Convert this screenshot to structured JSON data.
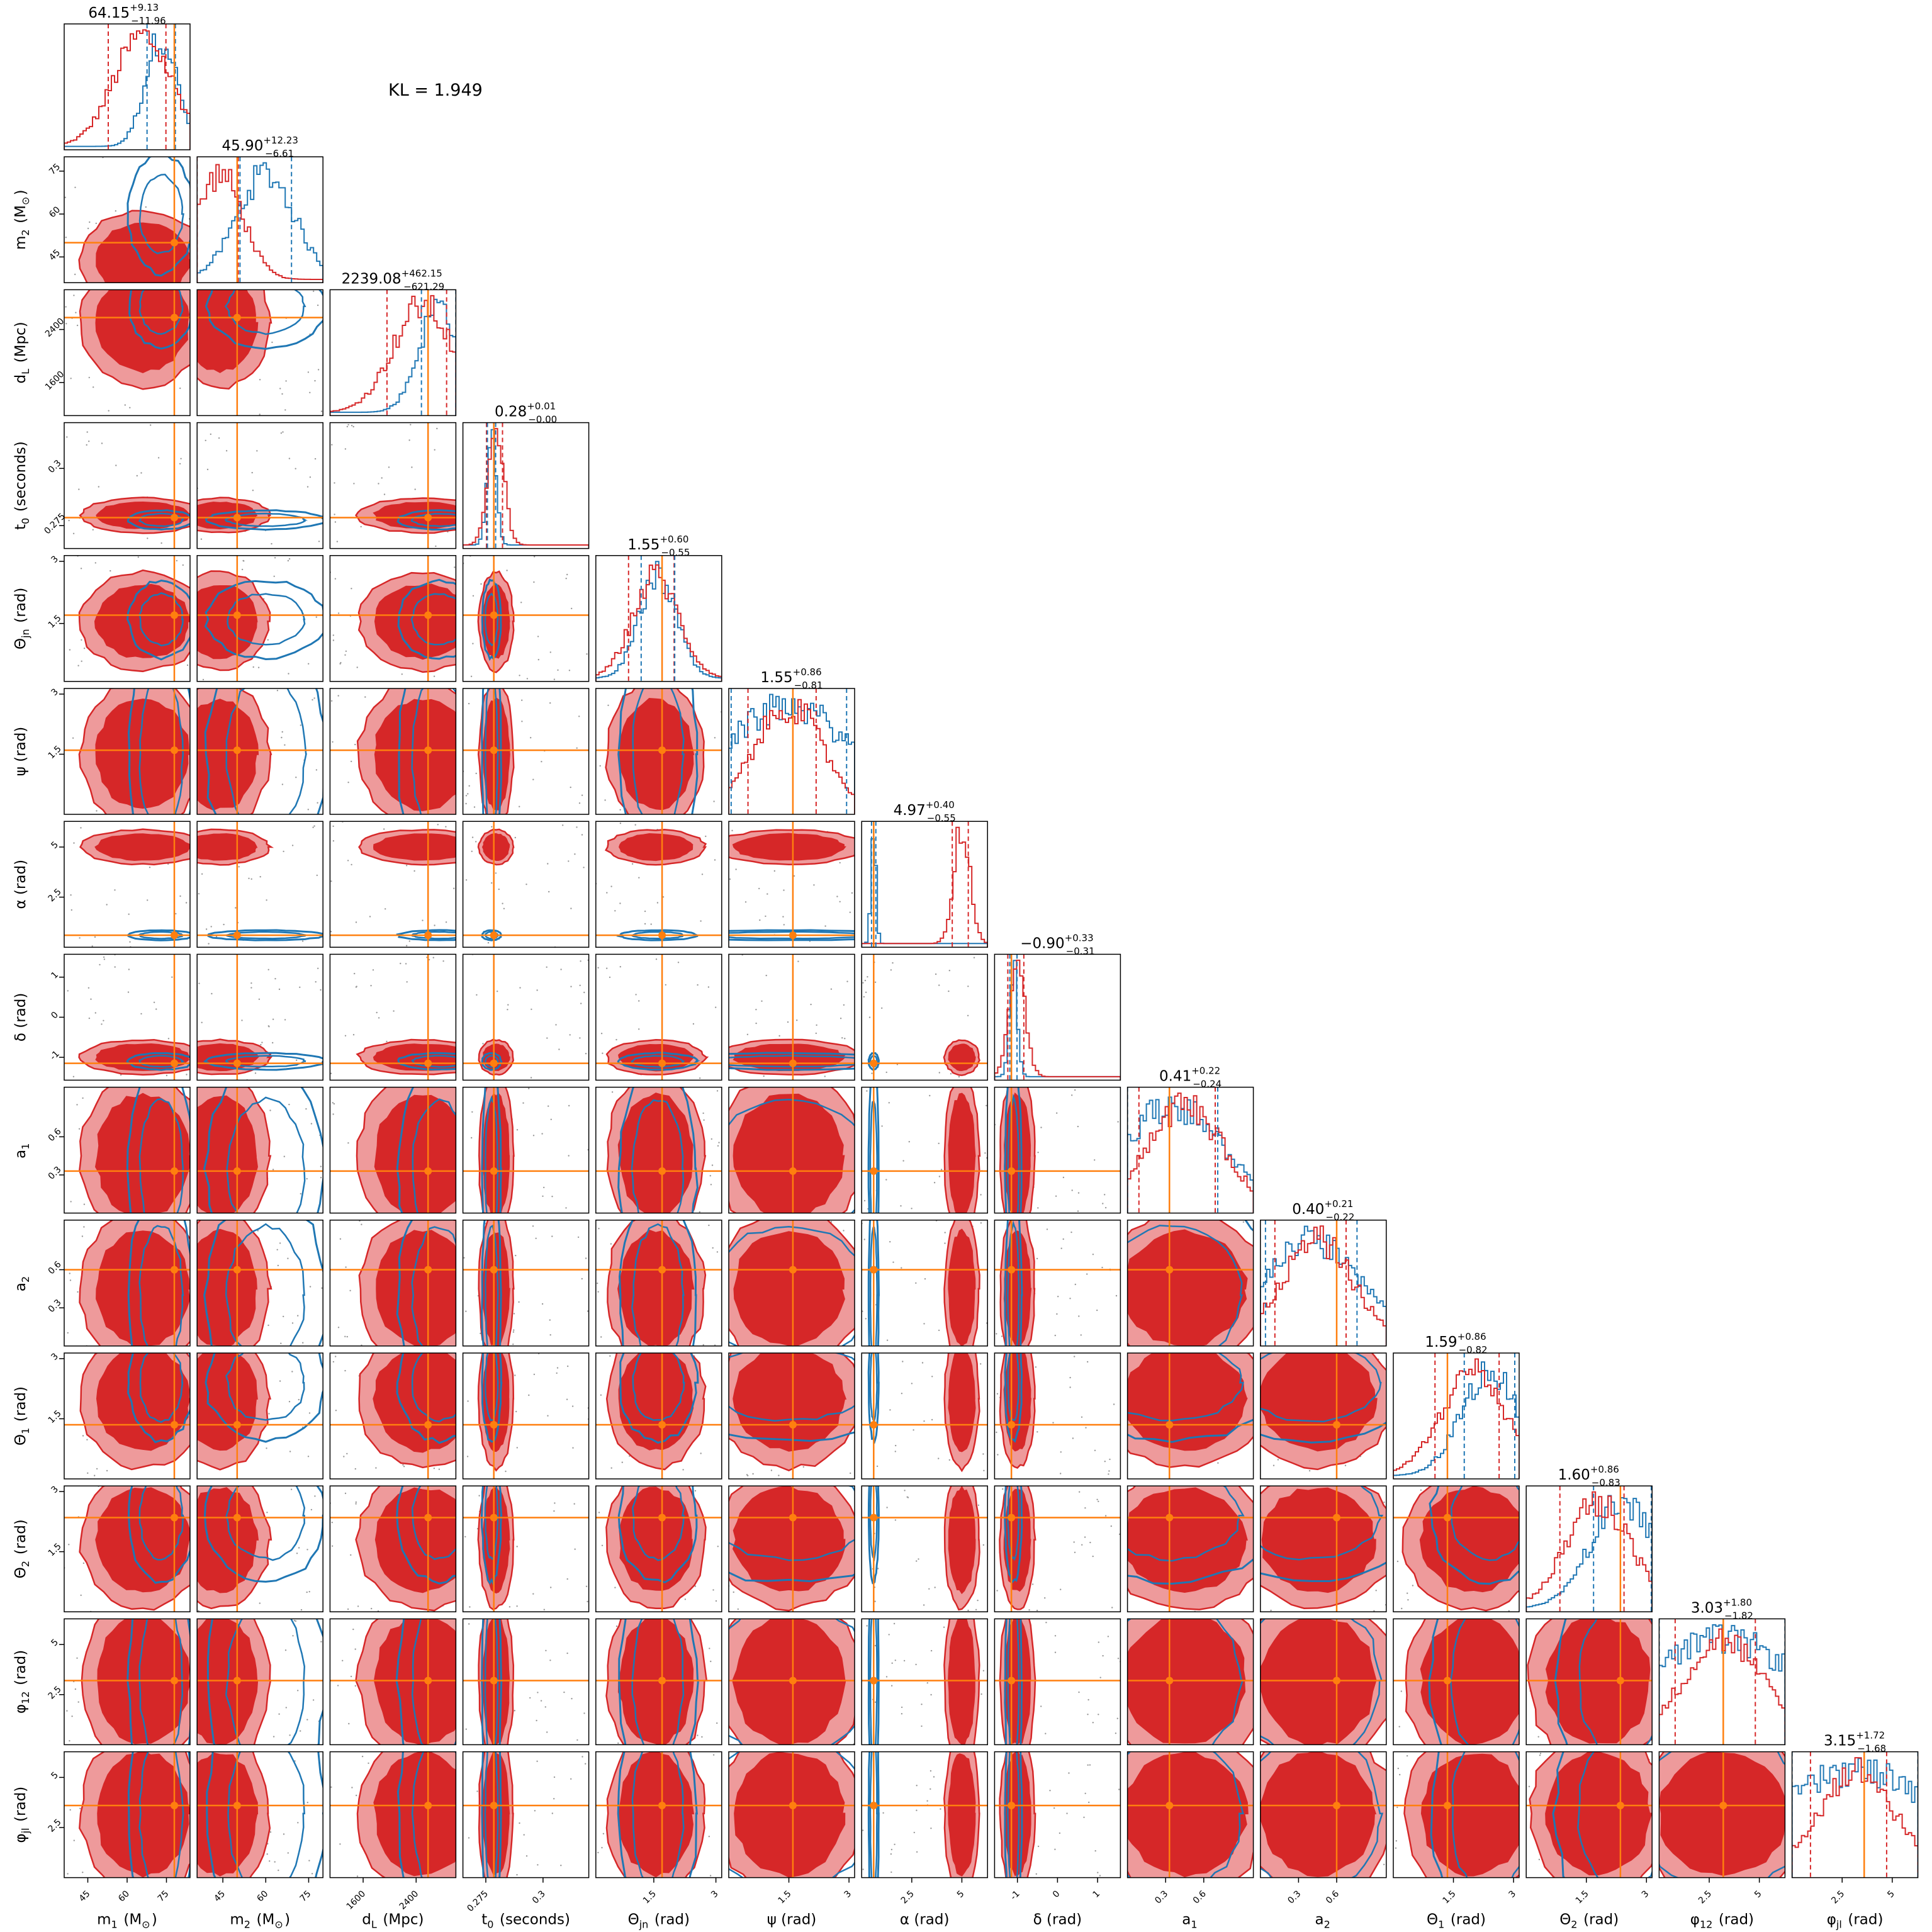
{
  "chart_data": {
    "type": "corner",
    "kl_label": "KL = 1.949",
    "colors": {
      "posterior_a": "#d62728",
      "posterior_b": "#1f77b4",
      "truth": "#ff7f0e"
    },
    "parameters": [
      {
        "key": "m1",
        "label": "m_1 (M_⊙)",
        "range": [
          36,
          84
        ],
        "ticks": [
          45,
          60,
          75
        ],
        "truth": 78,
        "title_value": "64.15",
        "title_plus": "+9.13",
        "title_minus": "−11.96",
        "red_mode": 66,
        "red_width": 11,
        "blue_mode": 73,
        "blue_width": 6
      },
      {
        "key": "m2",
        "label": "m_2 (M_⊙)",
        "range": [
          36,
          80
        ],
        "ticks": [
          45,
          60,
          75
        ],
        "truth": 50,
        "title_value": "45.90",
        "title_plus": "+12.23",
        "title_minus": "−6.61",
        "red_mode": 44,
        "red_width": 8,
        "blue_mode": 60,
        "blue_width": 10
      },
      {
        "key": "dL",
        "label": "d_L (Mpc)",
        "range": [
          1100,
          3000
        ],
        "ticks": [
          1600,
          2400
        ],
        "truth": 2580,
        "title_value": "2239.08",
        "title_plus": "+462.15",
        "title_minus": "−621.29",
        "red_mode": 2500,
        "red_width": 450,
        "blue_mode": 2750,
        "blue_width": 300
      },
      {
        "key": "t0",
        "label": "t_0 (seconds)",
        "range": [
          0.265,
          0.32
        ],
        "ticks": [
          0.275,
          0.3
        ],
        "truth": 0.2785,
        "title_value": "0.28",
        "title_plus": "+0.01",
        "title_minus": "−0.00",
        "red_mode": 0.2795,
        "red_width": 0.0035,
        "blue_mode": 0.2775,
        "blue_width": 0.002
      },
      {
        "key": "thetajn",
        "label": "Θ_{jn} (rad)",
        "range": [
          0.1,
          3.14
        ],
        "ticks": [
          1.5,
          3.0
        ],
        "truth": 1.7,
        "title_value": "1.55",
        "title_plus": "+0.60",
        "title_minus": "−0.55",
        "red_mode": 1.55,
        "red_width": 0.55,
        "blue_mode": 1.6,
        "blue_width": 0.45
      },
      {
        "key": "psi",
        "label": "ψ (rad)",
        "range": [
          0,
          3.14
        ],
        "ticks": [
          1.5,
          3.0
        ],
        "truth": 1.6,
        "title_value": "1.55",
        "title_plus": "+0.86",
        "title_minus": "−0.81",
        "red_mode": 1.5,
        "red_width": 0.85,
        "blue_mode": 1.5,
        "blue_width": 1.6
      },
      {
        "key": "alpha",
        "label": "α (rad)",
        "range": [
          0,
          6.28
        ],
        "ticks": [
          2.5,
          5.0
        ],
        "truth": 0.6,
        "title_value": "4.97",
        "title_plus": "+0.40",
        "title_minus": "−0.55",
        "red_mode": 5.0,
        "red_width": 0.4,
        "blue_mode": 0.6,
        "blue_width": 0.12
      },
      {
        "key": "delta",
        "label": "δ (rad)",
        "range": [
          -1.57,
          1.57
        ],
        "ticks": [
          -1,
          0,
          1
        ],
        "truth": -1.15,
        "title_value": "−0.90",
        "title_plus": "+0.33",
        "title_minus": "−0.31",
        "red_mode": -1.0,
        "red_width": 0.2,
        "blue_mode": -1.1,
        "blue_width": 0.1
      },
      {
        "key": "a1",
        "label": "a_1",
        "range": [
          0,
          0.99
        ],
        "ticks": [
          0.3,
          0.6
        ],
        "truth": 0.33,
        "title_value": "0.41",
        "title_plus": "+0.22",
        "title_minus": "−0.24",
        "red_mode": 0.45,
        "red_width": 0.3,
        "blue_mode": 0.35,
        "blue_width": 0.4
      },
      {
        "key": "a2",
        "label": "a_2",
        "range": [
          0,
          0.99
        ],
        "ticks": [
          0.3,
          0.6
        ],
        "truth": 0.6,
        "title_value": "0.40",
        "title_plus": "+0.21",
        "title_minus": "−0.22",
        "red_mode": 0.45,
        "red_width": 0.28,
        "blue_mode": 0.4,
        "blue_width": 0.4
      },
      {
        "key": "theta1",
        "label": "Θ_1 (rad)",
        "range": [
          0,
          3.14
        ],
        "ticks": [
          1.5,
          3.0
        ],
        "truth": 1.35,
        "title_value": "1.59",
        "title_plus": "+0.86",
        "title_minus": "−0.82",
        "red_mode": 2.0,
        "red_width": 0.8,
        "blue_mode": 2.4,
        "blue_width": 0.7
      },
      {
        "key": "theta2",
        "label": "Θ_2 (rad)",
        "range": [
          0,
          3.14
        ],
        "ticks": [
          1.5,
          3.0
        ],
        "truth": 2.35,
        "title_value": "1.60",
        "title_plus": "+0.86",
        "title_minus": "−0.83",
        "red_mode": 1.8,
        "red_width": 0.8,
        "blue_mode": 2.4,
        "blue_width": 0.8
      },
      {
        "key": "phi12",
        "label": "φ_{12} (rad)",
        "range": [
          0,
          6.28
        ],
        "ticks": [
          2.5,
          5.0
        ],
        "truth": 3.2,
        "title_value": "3.03",
        "title_plus": "+1.80",
        "title_minus": "−1.82",
        "red_mode": 3.2,
        "red_width": 2.0,
        "blue_mode": 3.2,
        "blue_width": 4.0
      },
      {
        "key": "phijl",
        "label": "φ_{jl} (rad)",
        "range": [
          0,
          6.28
        ],
        "ticks": [
          2.5,
          5.0
        ],
        "truth": 3.6,
        "title_value": "3.15",
        "title_plus": "+1.72",
        "title_minus": "−1.68",
        "red_mode": 3.2,
        "red_width": 1.9,
        "blue_mode": 3.2,
        "blue_width": 4.0
      }
    ]
  }
}
